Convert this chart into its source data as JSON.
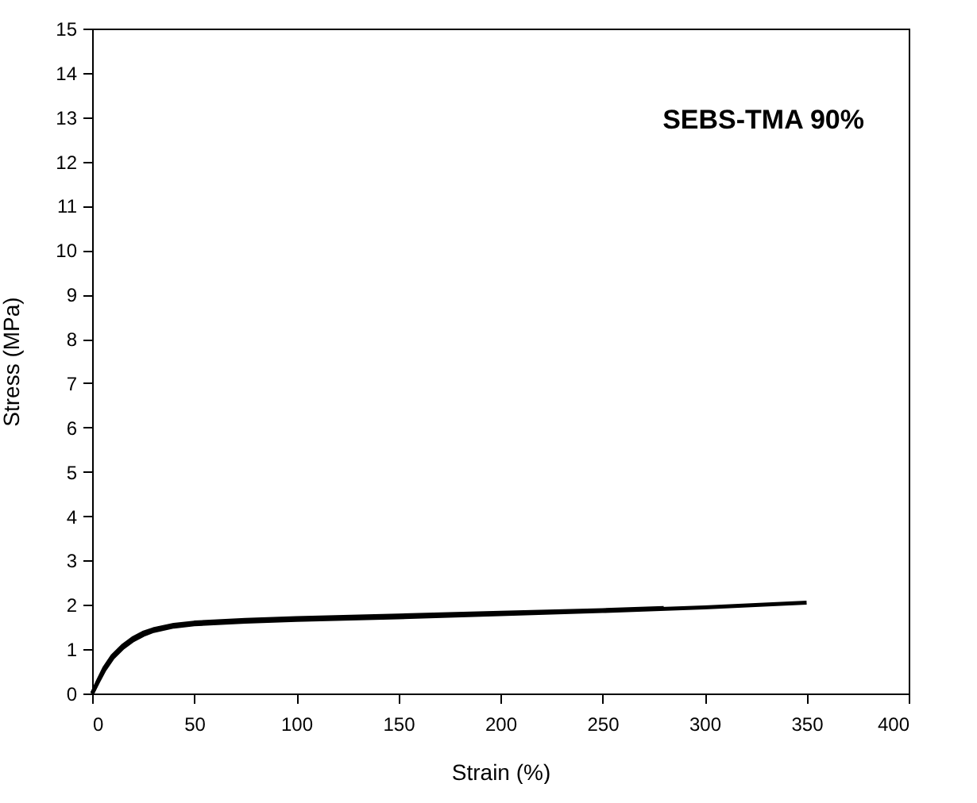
{
  "chart_data": {
    "type": "line",
    "xlabel": "Strain (%)",
    "ylabel": "Stress (MPa)",
    "annotations": [
      "SEBS-TMA 90%"
    ],
    "xlim": [
      0,
      400
    ],
    "xticks": [
      0,
      50,
      100,
      150,
      200,
      250,
      300,
      350,
      400
    ],
    "ylim": [
      0,
      15
    ],
    "yticks": [
      0,
      1,
      2,
      3,
      4,
      5,
      6,
      7,
      8,
      9,
      10,
      11,
      12,
      13,
      14,
      15
    ],
    "grid": false,
    "legend": false,
    "marker": "none",
    "line_style": "solid",
    "series": [
      {
        "color": "#000000",
        "x": [
          0,
          3,
          6,
          10,
          15,
          20,
          25,
          30,
          40,
          50,
          75,
          100,
          150,
          200,
          250,
          280
        ],
        "values": [
          0,
          0.3,
          0.58,
          0.85,
          1.08,
          1.25,
          1.37,
          1.45,
          1.55,
          1.6,
          1.66,
          1.7,
          1.76,
          1.82,
          1.88,
          1.93
        ]
      },
      {
        "color": "#000000",
        "x": [
          0,
          3,
          6,
          10,
          15,
          20,
          25,
          30,
          40,
          50,
          75,
          100,
          150,
          200,
          250,
          300,
          350
        ],
        "values": [
          0,
          0.27,
          0.53,
          0.8,
          1.03,
          1.2,
          1.32,
          1.41,
          1.51,
          1.56,
          1.62,
          1.66,
          1.72,
          1.79,
          1.86,
          1.94,
          2.05
        ]
      }
    ]
  }
}
